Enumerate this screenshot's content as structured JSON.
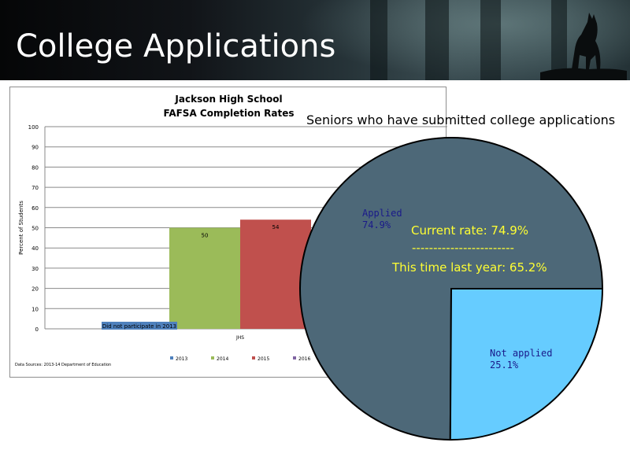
{
  "slide": {
    "title": "College Applications"
  },
  "bar_chart": {
    "title_line1": "Jackson High School",
    "title_line2": "FAFSA Completion Rates",
    "no_data_note": "Did not participate in 2013",
    "source_note": "Data Sources: 2013-14 Department of Education",
    "colors": {
      "2013": "#4f81bd",
      "2014": "#9bbb59",
      "2015": "#c0504d",
      "2016": "#8064a2"
    }
  },
  "pie_chart": {
    "title": "Seniors who have submitted college applications",
    "current_note": "Current rate: 74.9%",
    "separator": "------------------------",
    "last_year_note": "This time last year: 65.2%",
    "colors": {
      "applied": "#4d6878",
      "not_applied": "#66ccff"
    }
  },
  "chart_data": [
    {
      "type": "bar",
      "title": "Jackson High School FAFSA Completion Rates",
      "categories": [
        "JHS"
      ],
      "series": [
        {
          "name": "2013",
          "values": [
            null
          ]
        },
        {
          "name": "2014",
          "values": [
            50
          ]
        },
        {
          "name": "2015",
          "values": [
            54
          ]
        },
        {
          "name": "2016",
          "values": [
            null
          ]
        }
      ],
      "xlabel": "",
      "ylabel": "Percent of Students",
      "ylim": [
        0,
        100
      ],
      "yticks": [
        0,
        10,
        20,
        30,
        40,
        50,
        60,
        70,
        80,
        90,
        100
      ],
      "grid": true,
      "legend": "bottom",
      "data_labels": [
        "50",
        "54"
      ]
    },
    {
      "type": "pie",
      "title": "Seniors who have submitted college applications",
      "slices": [
        {
          "name": "Applied",
          "value": 74.9,
          "label": "74.9%"
        },
        {
          "name": "Not applied",
          "value": 25.1,
          "label": "25.1%"
        }
      ]
    }
  ]
}
